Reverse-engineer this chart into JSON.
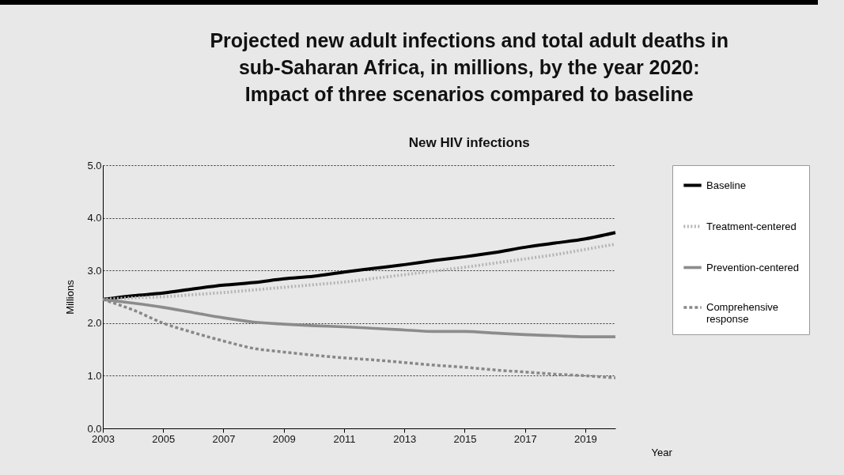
{
  "chart_data": {
    "type": "line",
    "title": "Projected new adult infections and total adult deaths in sub-Saharan Africa, in millions, by the year 2020: Impact of three scenarios compared to baseline",
    "subtitle": "New HIV infections",
    "xlabel": "Year",
    "ylabel": "Millions",
    "x": [
      2003,
      2004,
      2005,
      2006,
      2007,
      2008,
      2009,
      2010,
      2011,
      2012,
      2013,
      2014,
      2015,
      2016,
      2017,
      2018,
      2019,
      2020
    ],
    "xlim": [
      2003,
      2020
    ],
    "xticks": [
      2003,
      2005,
      2007,
      2009,
      2011,
      2013,
      2015,
      2017,
      2019
    ],
    "ylim": [
      0,
      5
    ],
    "yticks": [
      {
        "value": 0,
        "label": "0.0"
      },
      {
        "value": 1,
        "label": "1.0"
      },
      {
        "value": 2,
        "label": "2.0"
      },
      {
        "value": 3,
        "label": "3.0"
      },
      {
        "value": 4,
        "label": "4.0"
      },
      {
        "value": 5,
        "label": "5.0"
      }
    ],
    "grid": "y",
    "legend": "right",
    "marker": "none",
    "series": [
      {
        "name": "Baseline",
        "color": "#000000",
        "line_style": "solid",
        "values": [
          2.45,
          2.52,
          2.57,
          2.65,
          2.72,
          2.77,
          2.84,
          2.89,
          2.97,
          3.04,
          3.11,
          3.19,
          3.26,
          3.34,
          3.44,
          3.52,
          3.6,
          3.72
        ]
      },
      {
        "name": "Treatment-centered",
        "color": "#b4b4b4",
        "line_style": "dotted",
        "values": [
          2.45,
          2.48,
          2.5,
          2.54,
          2.58,
          2.63,
          2.68,
          2.73,
          2.78,
          2.85,
          2.92,
          2.99,
          3.06,
          3.14,
          3.22,
          3.3,
          3.4,
          3.5
        ]
      },
      {
        "name": "Prevention-centered",
        "color": "#8c8c8c",
        "line_style": "solid",
        "values": [
          2.45,
          2.38,
          2.3,
          2.2,
          2.1,
          2.02,
          1.98,
          1.95,
          1.93,
          1.9,
          1.87,
          1.84,
          1.84,
          1.81,
          1.78,
          1.76,
          1.74,
          1.74
        ]
      },
      {
        "name": "Comprehensive response",
        "color": "#888888",
        "line_style": "dashed",
        "values": [
          2.45,
          2.25,
          2.0,
          1.82,
          1.66,
          1.52,
          1.45,
          1.39,
          1.34,
          1.3,
          1.25,
          1.2,
          1.16,
          1.11,
          1.07,
          1.03,
          1.0,
          0.96
        ]
      }
    ]
  }
}
